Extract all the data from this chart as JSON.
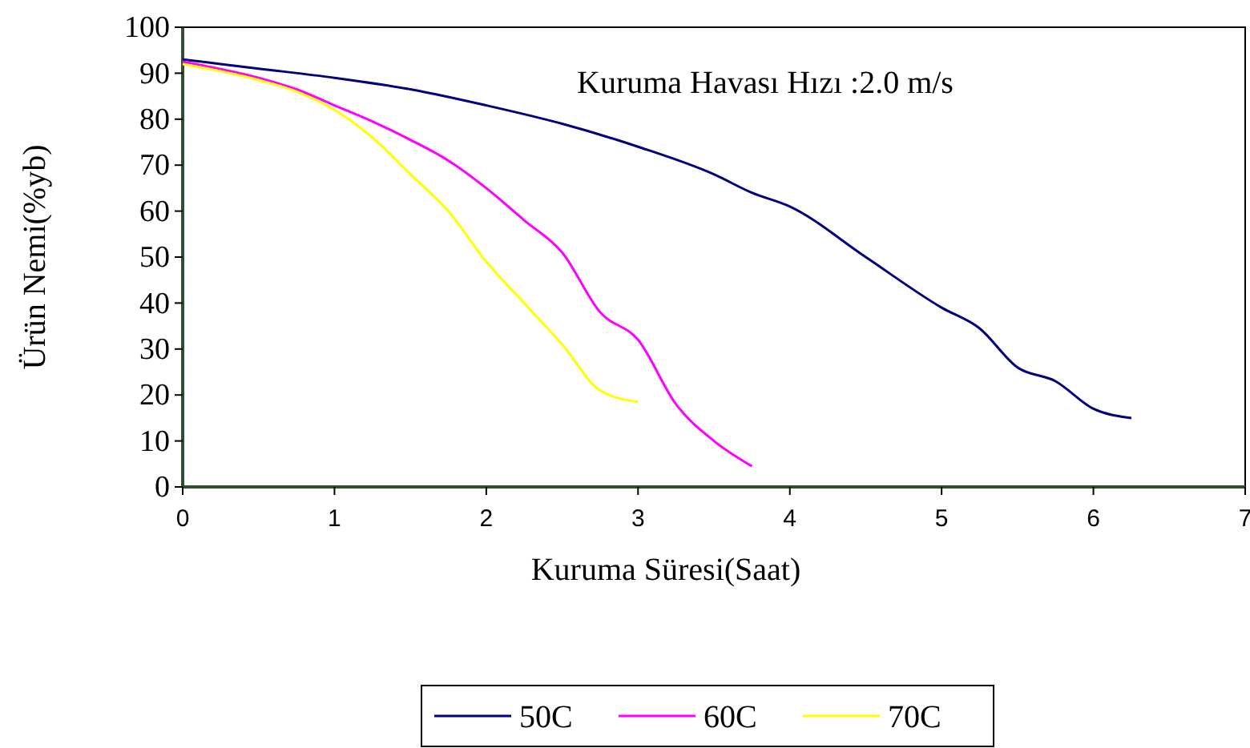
{
  "chart_data": {
    "type": "line",
    "xlabel": "Kuruma Süresi(Saat)",
    "ylabel": "Ürün Nemi(%yb)",
    "annotations": [
      "Kuruma Havası Hızı :2.0 m/s"
    ],
    "xlim": [
      0,
      7
    ],
    "xticks": [
      0,
      1,
      2,
      3,
      4,
      5,
      6,
      7
    ],
    "ylim": [
      0,
      100
    ],
    "yticks": [
      0,
      10,
      20,
      30,
      40,
      50,
      60,
      70,
      80,
      90,
      100
    ],
    "grid": false,
    "legend": "bottom",
    "marker": "none",
    "line_style": "solid",
    "series": [
      {
        "name": "50C",
        "color": "#000080",
        "x": [
          0,
          0.5,
          1,
          1.5,
          2,
          2.5,
          3,
          3.5,
          3.75,
          4,
          4.5,
          5,
          5.25,
          5.5,
          5.75,
          6,
          6.25
        ],
        "values": [
          93,
          91,
          89,
          86.5,
          83,
          79,
          74,
          68,
          64,
          61,
          50,
          39,
          34.5,
          26,
          23,
          17,
          15
        ]
      },
      {
        "name": "60C",
        "color": "#ff00ff",
        "x": [
          0,
          0.5,
          0.75,
          1,
          1.25,
          1.5,
          1.75,
          2,
          2.25,
          2.5,
          2.75,
          3,
          3.25,
          3.5,
          3.75
        ],
        "values": [
          92.5,
          89,
          86.5,
          83,
          79.5,
          75.5,
          71,
          65,
          58,
          51,
          38,
          32,
          18,
          10,
          4.5
        ]
      },
      {
        "name": "70C",
        "color": "#ffff00",
        "x": [
          0,
          0.5,
          0.75,
          1,
          1.25,
          1.5,
          1.75,
          2,
          2.25,
          2.5,
          2.75,
          3
        ],
        "values": [
          92,
          88.5,
          86,
          82,
          76,
          68,
          60,
          49,
          40,
          31,
          21,
          18.5
        ]
      }
    ]
  }
}
